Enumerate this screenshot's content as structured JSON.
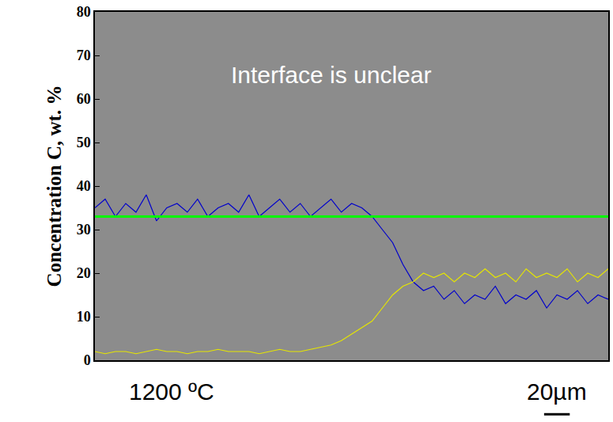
{
  "chart_data": {
    "type": "line",
    "y_label": "Concentration C, wt. %",
    "annotations": [
      "Interface is unclear",
      "1200 ºC",
      "20µm"
    ],
    "x": [
      0,
      2,
      4,
      6,
      8,
      10,
      12,
      14,
      16,
      18,
      20,
      22,
      24,
      26,
      28,
      30,
      32,
      34,
      36,
      38,
      40,
      42,
      44,
      46,
      48,
      50,
      52,
      54,
      56,
      58,
      60,
      62,
      64,
      66,
      68,
      70,
      72,
      74,
      76,
      78,
      80,
      82,
      84,
      86,
      88,
      90,
      92,
      94,
      96,
      98,
      100
    ],
    "series": [
      {
        "color": "#0000cc",
        "values": [
          35,
          37,
          33,
          36,
          34,
          38,
          32,
          35,
          36,
          34,
          37,
          33,
          35,
          36,
          34,
          38,
          33,
          35,
          37,
          34,
          36,
          33,
          35,
          37,
          34,
          36,
          35,
          33,
          30,
          27,
          22,
          18,
          16,
          17,
          14,
          16,
          13,
          15,
          14,
          17,
          13,
          15,
          14,
          16,
          12,
          15,
          14,
          16,
          13,
          15,
          14
        ]
      },
      {
        "color": "#e6e600",
        "values": [
          2,
          1.5,
          2,
          2,
          1.5,
          2,
          2.5,
          2,
          2,
          1.5,
          2,
          2,
          2.5,
          2,
          2,
          2,
          1.5,
          2,
          2.5,
          2,
          2,
          2.5,
          3,
          3.5,
          4.5,
          6,
          7.5,
          9,
          12,
          15,
          17,
          18,
          20,
          19,
          20,
          18,
          20,
          19,
          21,
          19,
          20,
          18,
          21,
          19,
          20,
          19,
          21,
          18,
          20,
          19,
          21
        ]
      },
      {
        "color": "#00ff00",
        "values": [
          33,
          33,
          33,
          33,
          33,
          33,
          33,
          33,
          33,
          33,
          33,
          33,
          33,
          33,
          33,
          33,
          33,
          33,
          33,
          33,
          33,
          33,
          33,
          33,
          33,
          33,
          33,
          33,
          33,
          33,
          33,
          33,
          33,
          33,
          33,
          33,
          33,
          33,
          33,
          33,
          33,
          33,
          33,
          33,
          33,
          33,
          33,
          33,
          33,
          33,
          33
        ]
      }
    ],
    "xlim": [
      0,
      100
    ],
    "xticks": [],
    "ylim": [
      0,
      80
    ],
    "yticks": [
      0,
      10,
      20,
      30,
      40,
      50,
      60,
      70,
      80
    ],
    "tick_labels": "y",
    "grid": false
  }
}
